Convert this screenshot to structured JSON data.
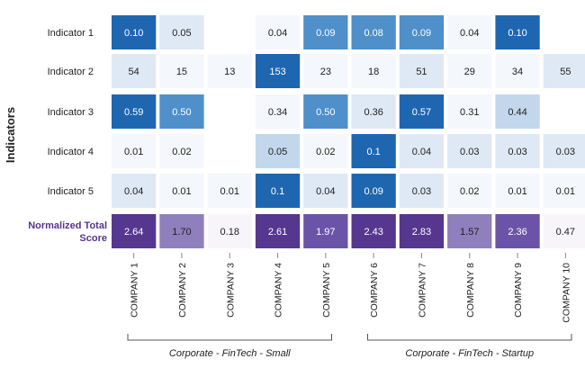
{
  "chart_data": {
    "type": "heatmap",
    "ylabel": "Indicators",
    "columns": [
      "COMPANY 1",
      "COMPANY 2",
      "COMPANY 3",
      "COMPANY 4",
      "COMPANY 5",
      "COMPANY 6",
      "COMPANY 7",
      "COMPANY 8",
      "COMPANY 9",
      "COMPANY 10"
    ],
    "rows": [
      {
        "label": "Indicator 1",
        "display": [
          "0.10",
          "0.05",
          null,
          "0.04",
          "0.09",
          "0.08",
          "0.09",
          "0.04",
          "0.10",
          null
        ],
        "values": [
          0.1,
          0.05,
          null,
          0.04,
          0.09,
          0.08,
          0.09,
          0.04,
          0.1,
          null
        ]
      },
      {
        "label": "Indicator 2",
        "display": [
          "54",
          "15",
          "13",
          "153",
          "23",
          "18",
          "51",
          "29",
          "34",
          "55"
        ],
        "values": [
          54,
          15,
          13,
          153,
          23,
          18,
          51,
          29,
          34,
          55
        ]
      },
      {
        "label": "Indicator 3",
        "display": [
          "0.59",
          "0.50",
          null,
          "0.34",
          "0.50",
          "0.36",
          "0.57",
          "0.31",
          "0.44",
          null
        ],
        "values": [
          0.59,
          0.5,
          null,
          0.34,
          0.5,
          0.36,
          0.57,
          0.31,
          0.44,
          null
        ]
      },
      {
        "label": "Indicator 4",
        "display": [
          "0.01",
          "0.02",
          null,
          "0.05",
          "0.02",
          "0.1",
          "0.04",
          "0.03",
          "0.03",
          "0.03"
        ],
        "values": [
          0.01,
          0.02,
          null,
          0.05,
          0.02,
          0.1,
          0.04,
          0.03,
          0.03,
          0.03
        ]
      },
      {
        "label": "Indicator 5",
        "display": [
          "0.04",
          "0.01",
          "0.01",
          "0.1",
          "0.04",
          "0.09",
          "0.03",
          "0.02",
          "0.01",
          "0.01"
        ],
        "values": [
          0.04,
          0.01,
          0.01,
          0.1,
          0.04,
          0.09,
          0.03,
          0.02,
          0.01,
          0.01
        ]
      }
    ],
    "total": {
      "label": "Normalized Total Score",
      "display": [
        "2.64",
        "1.70",
        "0.18",
        "2.61",
        "1.97",
        "2.43",
        "2.83",
        "1.57",
        "2.36",
        "0.47"
      ],
      "values": [
        2.64,
        1.7,
        0.18,
        2.61,
        1.97,
        2.43,
        2.83,
        1.57,
        2.36,
        0.47
      ]
    },
    "groups": [
      {
        "label": "Corporate - FinTech - Small",
        "from": 0,
        "to": 4
      },
      {
        "label": "Corporate - FinTech - Startup",
        "from": 5,
        "to": 9
      }
    ],
    "colors": {
      "blue_scale": [
        "#f4f7fc",
        "#dfe9f5",
        "#c2d7ec",
        "#9bc1e0",
        "#4f8fca",
        "#1f66b1"
      ],
      "purple_scale": [
        "#f7f5fa",
        "#e3dcec",
        "#b9aed4",
        "#8f7fbd",
        "#6b54a8",
        "#55378f"
      ],
      "total_label": "#55358f",
      "light_text": "#ffffff",
      "dark_text": "#222222"
    }
  }
}
